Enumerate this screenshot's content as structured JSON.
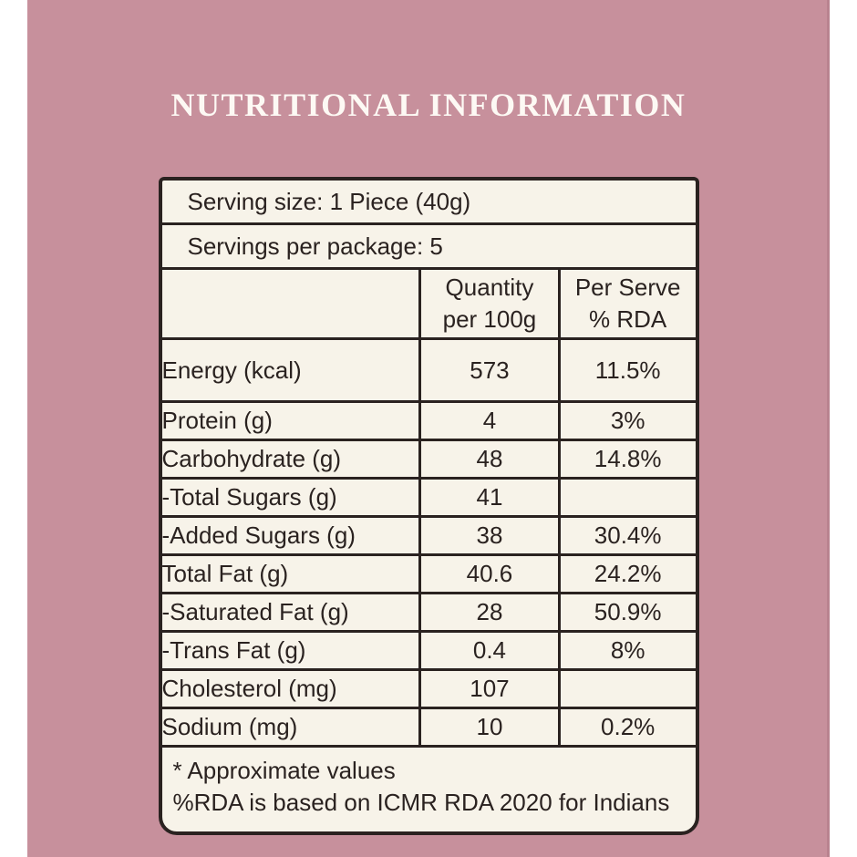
{
  "title": "NUTRITIONAL INFORMATION",
  "colors": {
    "background_pink": "#c7909c",
    "table_cream": "#f7f3e9",
    "ink_dark": "#2a2220",
    "title_white": "#fdf9f4"
  },
  "table": {
    "serving_size": "Serving size: 1 Piece (40g)",
    "servings_per_package": "Servings per package: 5",
    "columns": {
      "quantity": [
        "Quantity",
        "per 100g"
      ],
      "per_serve": [
        "Per Serve",
        "% RDA"
      ]
    },
    "rows": [
      {
        "nutrient": "Energy (kcal)",
        "quantity": "573",
        "rda": "11.5%"
      },
      {
        "nutrient": "Protein (g)",
        "quantity": "4",
        "rda": "3%"
      },
      {
        "nutrient": "Carbohydrate (g)",
        "quantity": "48",
        "rda": "14.8%"
      },
      {
        "nutrient": "-Total Sugars (g)",
        "quantity": "41",
        "rda": ""
      },
      {
        "nutrient": "-Added Sugars (g)",
        "quantity": "38",
        "rda": "30.4%"
      },
      {
        "nutrient": "Total Fat (g)",
        "quantity": "40.6",
        "rda": "24.2%"
      },
      {
        "nutrient": "-Saturated Fat (g)",
        "quantity": "28",
        "rda": "50.9%"
      },
      {
        "nutrient": "-Trans Fat (g)",
        "quantity": "0.4",
        "rda": "8%"
      },
      {
        "nutrient": "Cholesterol (mg)",
        "quantity": "107",
        "rda": ""
      },
      {
        "nutrient": "Sodium (mg)",
        "quantity": "10",
        "rda": "0.2%"
      }
    ],
    "footnotes": [
      "* Approximate values",
      "%RDA is based on ICMR RDA 2020 for Indians"
    ]
  }
}
